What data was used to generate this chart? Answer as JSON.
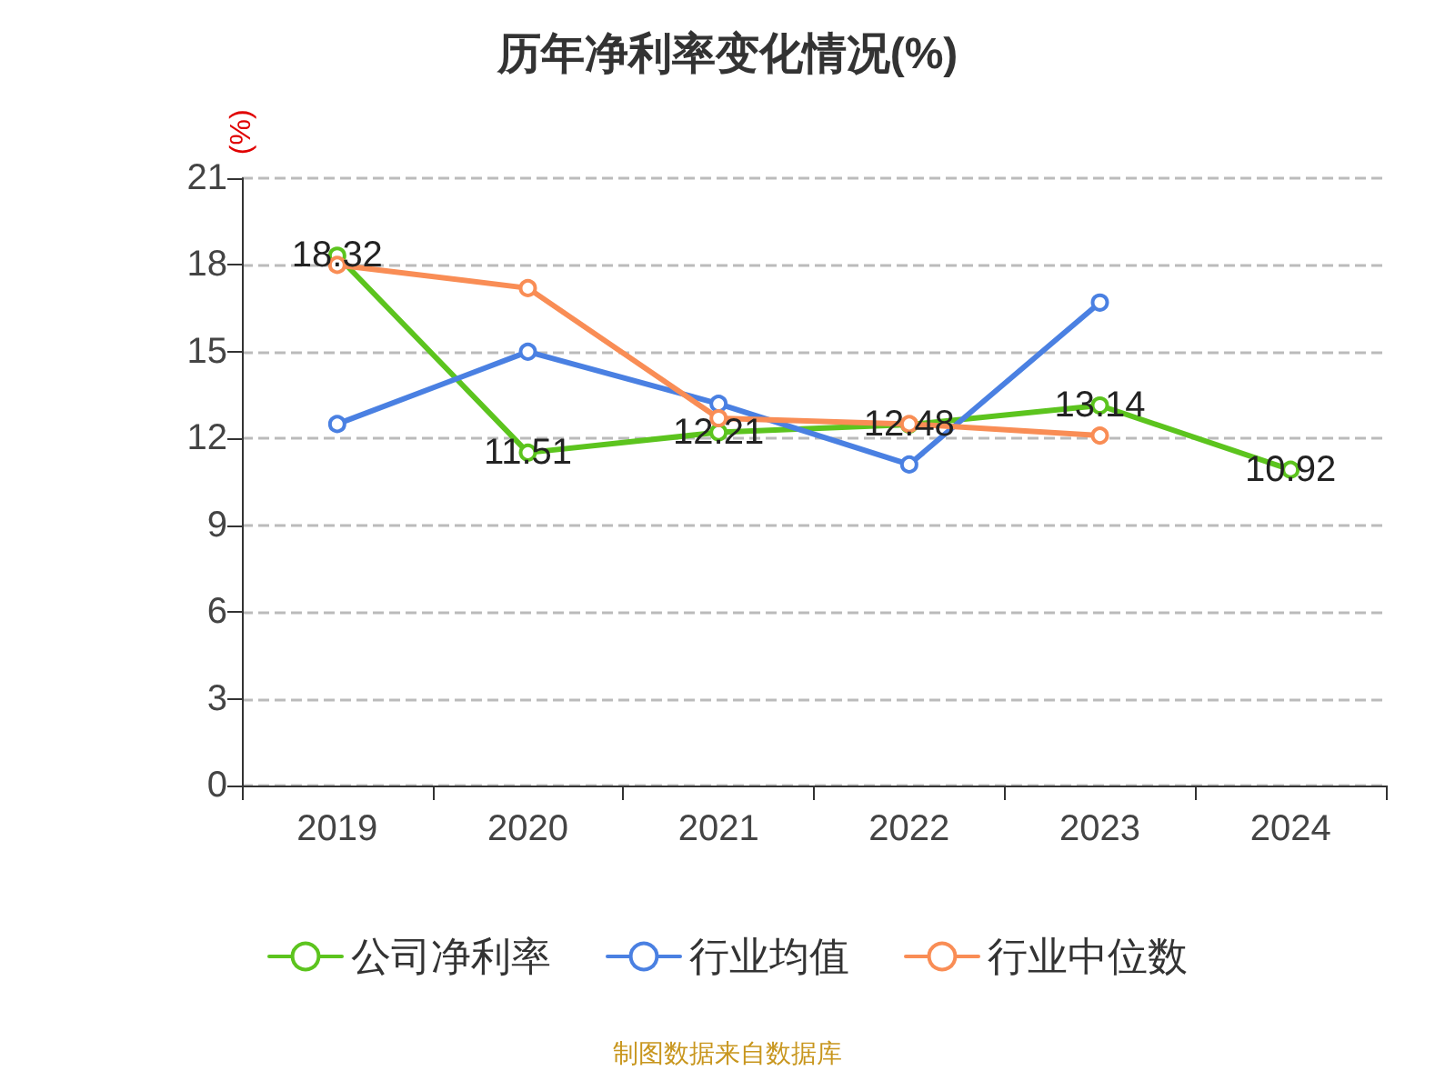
{
  "chart_data": {
    "type": "line",
    "title": "历年净利率变化情况(%)",
    "ylabel": "(%)",
    "categories": [
      "2019",
      "2020",
      "2021",
      "2022",
      "2023",
      "2024"
    ],
    "series": [
      {
        "name": "公司净利率",
        "color": "#5cc41e",
        "values": [
          18.32,
          11.51,
          12.21,
          12.48,
          13.14,
          10.92
        ],
        "value_labels": [
          "18.32",
          "11.51",
          "12.21",
          "12.48",
          "13.14",
          "10.92"
        ]
      },
      {
        "name": "行业均值",
        "color": "#4a80e2",
        "values": [
          12.5,
          15.0,
          13.2,
          11.1,
          16.7,
          null
        ]
      },
      {
        "name": "行业中位数",
        "color": "#f98d55",
        "values": [
          18.0,
          17.2,
          12.7,
          12.5,
          12.1,
          null
        ]
      }
    ],
    "ylim": [
      0,
      21
    ],
    "yticks": [
      0,
      3,
      6,
      9,
      12,
      15,
      18,
      21
    ],
    "grid": "y",
    "legend": "bottom",
    "marker": "circle",
    "line_style": "solid",
    "annotations": [
      "制图数据来自数据库"
    ]
  }
}
